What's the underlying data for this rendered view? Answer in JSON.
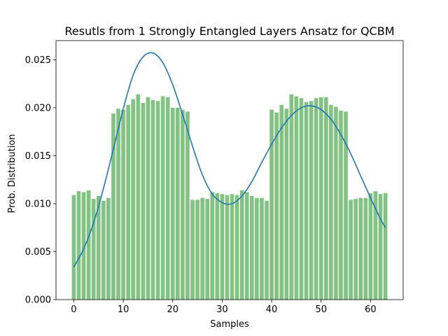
{
  "chart_data": {
    "type": "bar",
    "title": "Resutls from 1 Strongly Entangled Layers Ansatz for QCBM",
    "xlabel": "Samples",
    "ylabel": "Prob. Distribution",
    "xlim": [
      -3.6,
      66.6
    ],
    "ylim": [
      0.0,
      0.027
    ],
    "xticks": [
      0,
      10,
      20,
      30,
      40,
      50,
      60
    ],
    "yticks": [
      "0.000",
      "0.005",
      "0.010",
      "0.015",
      "0.020",
      "0.025"
    ],
    "grid": false,
    "legend": "none",
    "bar_color": "#82c282",
    "line_color": "#1f77b4",
    "series": [
      {
        "kind": "bar",
        "x": [
          0,
          1,
          2,
          3,
          4,
          5,
          6,
          7,
          8,
          9,
          10,
          11,
          12,
          13,
          14,
          15,
          16,
          17,
          18,
          19,
          20,
          21,
          22,
          23,
          24,
          25,
          26,
          27,
          28,
          29,
          30,
          31,
          32,
          33,
          34,
          35,
          36,
          37,
          38,
          39,
          40,
          41,
          42,
          43,
          44,
          45,
          46,
          47,
          48,
          49,
          50,
          51,
          52,
          53,
          54,
          55,
          56,
          57,
          58,
          59,
          60,
          61,
          62,
          63
        ],
        "values": [
          0.0109,
          0.0113,
          0.0112,
          0.0114,
          0.0105,
          0.0108,
          0.0103,
          0.0106,
          0.0194,
          0.0199,
          0.0198,
          0.0203,
          0.0209,
          0.0214,
          0.0205,
          0.0211,
          0.0208,
          0.0207,
          0.0212,
          0.0211,
          0.02,
          0.02,
          0.0198,
          0.0196,
          0.0104,
          0.0104,
          0.0106,
          0.0105,
          0.0112,
          0.0111,
          0.011,
          0.0109,
          0.011,
          0.0109,
          0.0114,
          0.0112,
          0.0108,
          0.0106,
          0.0106,
          0.0103,
          0.0198,
          0.0195,
          0.0203,
          0.0199,
          0.0214,
          0.0212,
          0.021,
          0.0206,
          0.0207,
          0.021,
          0.0211,
          0.0211,
          0.0203,
          0.0201,
          0.0197,
          0.0196,
          0.0104,
          0.0105,
          0.0106,
          0.0106,
          0.0111,
          0.0113,
          0.011,
          0.0111
        ]
      },
      {
        "kind": "line",
        "x": [
          0,
          2,
          4,
          6,
          8,
          10,
          12,
          14,
          16,
          18,
          20,
          22,
          24,
          26,
          28,
          30,
          32,
          34,
          36,
          38,
          40,
          42,
          44,
          46,
          48,
          50,
          52,
          54,
          56,
          58,
          60,
          62,
          63
        ],
        "values": [
          0.0034,
          0.0053,
          0.008,
          0.0116,
          0.0157,
          0.0199,
          0.0234,
          0.0253,
          0.0257,
          0.0247,
          0.0224,
          0.0193,
          0.016,
          0.013,
          0.011,
          0.0101,
          0.01,
          0.0108,
          0.0123,
          0.0143,
          0.0162,
          0.0179,
          0.0192,
          0.02,
          0.0202,
          0.0198,
          0.0188,
          0.0172,
          0.0152,
          0.0129,
          0.0106,
          0.0084,
          0.0075
        ]
      }
    ]
  }
}
